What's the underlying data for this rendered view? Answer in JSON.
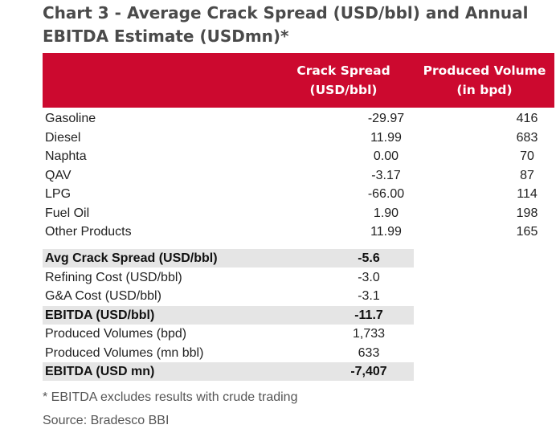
{
  "title": "Chart 3 - Average Crack Spread (USD/bbl) and Annual EBITDA Estimate (USDmn)*",
  "colors": {
    "header_bg": "#cc092f",
    "header_text": "#ffffff",
    "highlight_bg": "#e5e5e5",
    "title_text": "#4a4a4a"
  },
  "chart_data": {
    "type": "table",
    "title": "Chart 3 - Average Crack Spread (USD/bbl) and Annual EBITDA Estimate (USDmn)*",
    "columns": [
      "",
      "Crack Spread (USD/bbl)",
      "Produced Volume (in bpd)"
    ],
    "header": {
      "crack_line1": "Crack Spread",
      "crack_line2": "(USD/bbl)",
      "volume_line1": "Produced Volume",
      "volume_line2": "(in bpd)"
    },
    "products": [
      {
        "name": "Gasoline",
        "crack_spread": "-29.97",
        "volume": "416"
      },
      {
        "name": "Diesel",
        "crack_spread": "11.99",
        "volume": "683"
      },
      {
        "name": "Naphta",
        "crack_spread": "0.00",
        "volume": "70"
      },
      {
        "name": "QAV",
        "crack_spread": "-3.17",
        "volume": "87"
      },
      {
        "name": "LPG",
        "crack_spread": "-66.00",
        "volume": "114"
      },
      {
        "name": "Fuel Oil",
        "crack_spread": "1.90",
        "volume": "198"
      },
      {
        "name": "Other Products",
        "crack_spread": "11.99",
        "volume": "165"
      }
    ],
    "summary": [
      {
        "name": "Avg Crack Spread (USD/bbl)",
        "value": "-5.6",
        "highlight": true
      },
      {
        "name": "Refining Cost (USD/bbl)",
        "value": "-3.0",
        "highlight": false
      },
      {
        "name": "G&A Cost (USD/bbl)",
        "value": "-3.1",
        "highlight": false
      },
      {
        "name": "EBITDA (USD/bbl)",
        "value": "-11.7",
        "highlight": true
      },
      {
        "name": "Produced Volumes (bpd)",
        "value": "1,733",
        "highlight": false
      },
      {
        "name": "Produced Volumes (mn bbl)",
        "value": "633",
        "highlight": false
      },
      {
        "name": "EBITDA (USD mn)",
        "value": "-7,407",
        "highlight": true
      }
    ]
  },
  "footnote": "* EBITDA excludes results with crude trading",
  "source": "Source: Bradesco BBI"
}
